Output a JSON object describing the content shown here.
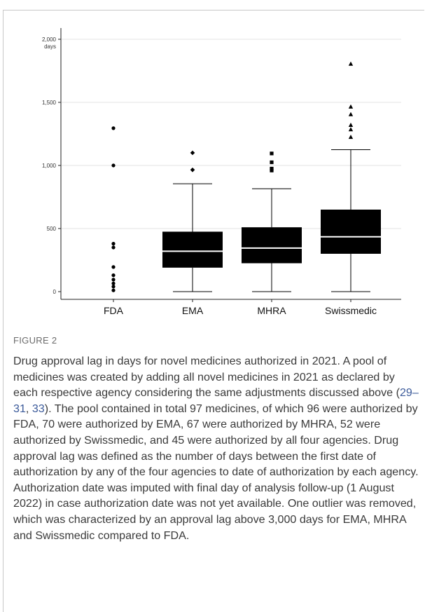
{
  "figure": {
    "label": "FIGURE 2",
    "caption": {
      "part1": "Drug approval lag in days for novel medicines authorized in 2021. A pool of medicines was created by adding all novel medicines in 2021 as declared by each respective agency considering the same adjustments discussed above (",
      "ref1": "29",
      "sep1": "–",
      "ref2": "31",
      "sep2": ", ",
      "ref3": "33",
      "part2": "). The pool contained in total 97 medicines, of which 96 were authorized by FDA, 70 were authorized by EMA, 67 were authorized by MHRA, 52 were authorized by Swissmedic, and 45 were authorized by all four agencies. Drug approval lag was defined as the number of days between the first date of authorization by any of the four agencies to date of authorization by each agency. Authorization date was imputed with final day of analysis follow-up (1 August 2022) in case authorization date was not yet available. One outlier was removed, which was characterized by an approval lag above 3,000 days for EMA, MHRA and Swissmedic compared to FDA."
    }
  },
  "chart_data": {
    "type": "box",
    "y_unit_label": "days",
    "ylim": [
      0,
      2000
    ],
    "y_ticks": [
      {
        "value": 0,
        "label": "0"
      },
      {
        "value": 500,
        "label": "500"
      },
      {
        "value": 1000,
        "label": "1,000"
      },
      {
        "value": 1500,
        "label": "1,500"
      },
      {
        "value": 2000,
        "label": "2,000"
      }
    ],
    "grid": "horizontal",
    "box_color": "#000000",
    "median_color": "#ffffff",
    "groups": [
      {
        "name": "FDA",
        "marker": "circle",
        "box": null,
        "outliers": [
          1295,
          1000,
          380,
          350,
          195,
          130,
          95,
          65,
          40,
          10
        ]
      },
      {
        "name": "EMA",
        "marker": "diamond",
        "box": {
          "min": 0,
          "q1": 190,
          "median": 320,
          "q3": 475,
          "max": 855
        },
        "outliers": [
          1100,
          965
        ]
      },
      {
        "name": "MHRA",
        "marker": "square",
        "box": {
          "min": 0,
          "q1": 225,
          "median": 345,
          "q3": 510,
          "max": 815
        },
        "outliers": [
          1095,
          1025,
          975,
          960
        ]
      },
      {
        "name": "Swissmedic",
        "marker": "triangle",
        "box": {
          "min": 0,
          "q1": 300,
          "median": 435,
          "q3": 650,
          "max": 1125
        },
        "outliers": [
          1805,
          1465,
          1405,
          1320,
          1285,
          1225
        ]
      }
    ]
  }
}
